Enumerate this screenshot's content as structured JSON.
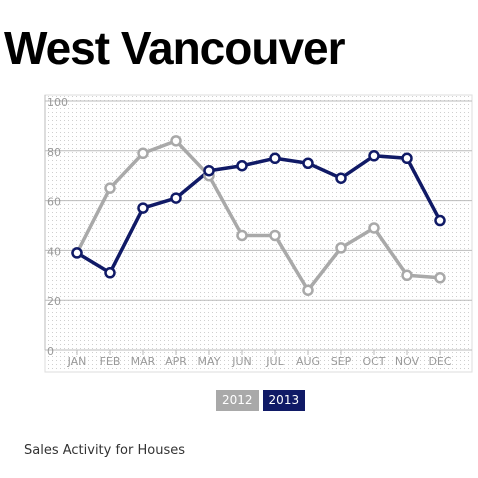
{
  "title": "West Vancouver",
  "caption": "Sales Activity for Houses",
  "chart_data": {
    "type": "line",
    "title": "West Vancouver",
    "categories": [
      "JAN",
      "FEB",
      "MAR",
      "APR",
      "MAY",
      "JUN",
      "JUL",
      "AUG",
      "SEP",
      "OCT",
      "NOV",
      "DEC"
    ],
    "y_ticks": [
      0,
      20,
      40,
      60,
      80,
      100
    ],
    "ylim": [
      0,
      100
    ],
    "grid": true,
    "legend_position": "bottom",
    "series": [
      {
        "name": "2012",
        "color": "#a9a9a9",
        "values": [
          39,
          65,
          79,
          84,
          70,
          46,
          46,
          24,
          41,
          49,
          30,
          29
        ]
      },
      {
        "name": "2013",
        "color": "#101a66",
        "values": [
          39,
          31,
          57,
          61,
          72,
          74,
          77,
          75,
          69,
          78,
          77,
          52
        ]
      }
    ]
  }
}
